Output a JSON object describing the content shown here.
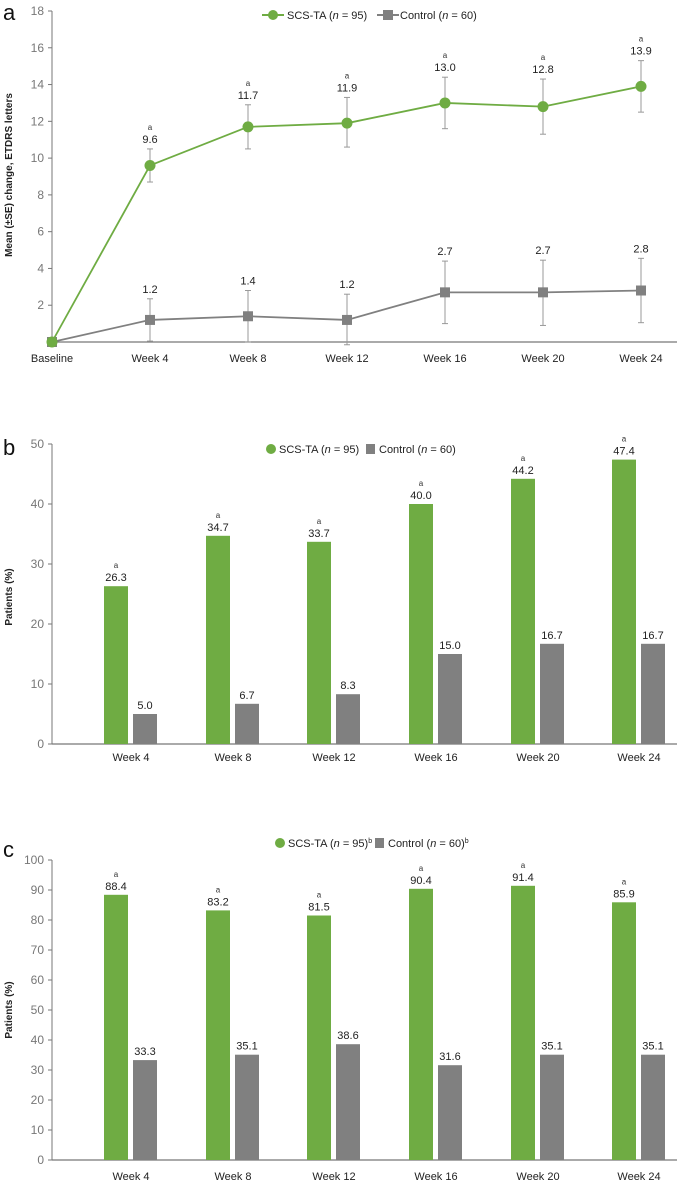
{
  "colors": {
    "scs": "#6fac43",
    "control": "#808080",
    "axis": "#777777"
  },
  "chart_data": [
    {
      "panel": "a",
      "type": "line",
      "ylabel": "Mean (±SE) change, ETDRS letters",
      "ylim": [
        0,
        18
      ],
      "yticks": [
        2,
        4,
        6,
        8,
        10,
        12,
        14,
        16,
        18
      ],
      "categories": [
        "Baseline",
        "Week 4",
        "Week 8",
        "Week 12",
        "Week 16",
        "Week 20",
        "Week 24"
      ],
      "legend_position": "top-center",
      "series": [
        {
          "name": "SCS-TA (n = 95)",
          "name_pre": "SCS-TA (",
          "name_n": "n",
          "name_post": " = 95)",
          "values": [
            0,
            9.6,
            11.7,
            11.9,
            13.0,
            12.8,
            13.9
          ],
          "labels": [
            "",
            "9.6",
            "11.7",
            "11.9",
            "13.0",
            "12.8",
            "13.9"
          ],
          "se_low": [
            null,
            8.7,
            10.5,
            10.6,
            11.6,
            11.3,
            12.5
          ],
          "se_high": [
            null,
            10.5,
            12.9,
            13.3,
            14.4,
            14.3,
            15.3
          ],
          "annotations": [
            "",
            "a",
            "a",
            "a",
            "a",
            "a",
            "a"
          ]
        },
        {
          "name": "Control (n = 60)",
          "name_pre": "Control (",
          "name_n": "n",
          "name_post": " = 60)",
          "values": [
            0,
            1.2,
            1.4,
            1.2,
            2.7,
            2.7,
            2.8
          ],
          "labels": [
            "",
            "1.2",
            "1.4",
            "1.2",
            "2.7",
            "2.7",
            "2.8"
          ],
          "se_low": [
            null,
            0.05,
            0.0,
            -0.15,
            1.0,
            0.9,
            1.05
          ],
          "se_high": [
            null,
            2.35,
            2.8,
            2.6,
            4.4,
            4.45,
            4.55
          ],
          "annotations": [
            "",
            "",
            "",
            "",
            "",
            "",
            ""
          ]
        }
      ]
    },
    {
      "panel": "b",
      "type": "bar",
      "ylabel": "Patients (%)",
      "ylim": [
        0,
        50
      ],
      "yticks": [
        0,
        10,
        20,
        30,
        40,
        50
      ],
      "categories": [
        "Week 4",
        "Week 8",
        "Week 12",
        "Week 16",
        "Week 20",
        "Week 24"
      ],
      "legend_position": "top-center",
      "series": [
        {
          "name": "SCS-TA (n = 95)",
          "name_pre": "SCS-TA (",
          "name_n": "n",
          "name_post": " = 95)",
          "sup": "",
          "values": [
            26.3,
            34.7,
            33.7,
            40.0,
            44.2,
            47.4
          ],
          "labels": [
            "26.3",
            "34.7",
            "33.7",
            "40.0",
            "44.2",
            "47.4"
          ],
          "annotations": [
            "a",
            "a",
            "a",
            "a",
            "a",
            "a"
          ]
        },
        {
          "name": "Control (n = 60)",
          "name_pre": "Control (",
          "name_n": "n",
          "name_post": " = 60)",
          "sup": "",
          "values": [
            5.0,
            6.7,
            8.3,
            15.0,
            16.7,
            16.7
          ],
          "labels": [
            "5.0",
            "6.7",
            "8.3",
            "15.0",
            "16.7",
            "16.7"
          ],
          "annotations": [
            "",
            "",
            "",
            "",
            "",
            ""
          ]
        }
      ]
    },
    {
      "panel": "c",
      "type": "bar",
      "ylabel": "Patients (%)",
      "ylim": [
        0,
        100
      ],
      "yticks": [
        0,
        10,
        20,
        30,
        40,
        50,
        60,
        70,
        80,
        90,
        100
      ],
      "categories": [
        "Week 4",
        "Week 8",
        "Week 12",
        "Week 16",
        "Week 20",
        "Week 24"
      ],
      "legend_position": "top-center",
      "series": [
        {
          "name": "SCS-TA (n = 95)b",
          "name_pre": "SCS-TA (",
          "name_n": "n",
          "name_post": " = 95)",
          "sup": "b",
          "values": [
            88.4,
            83.2,
            81.5,
            90.4,
            91.4,
            85.9
          ],
          "labels": [
            "88.4",
            "83.2",
            "81.5",
            "90.4",
            "91.4",
            "85.9"
          ],
          "annotations": [
            "a",
            "a",
            "a",
            "a",
            "a",
            "a"
          ]
        },
        {
          "name": "Control (n = 60)b",
          "name_pre": "Control (",
          "name_n": "n",
          "name_post": " = 60)",
          "sup": "b",
          "values": [
            33.3,
            35.1,
            38.6,
            31.6,
            35.1,
            35.1
          ],
          "labels": [
            "33.3",
            "35.1",
            "38.6",
            "31.6",
            "35.1",
            "35.1"
          ],
          "annotations": [
            "",
            "",
            "",
            "",
            "",
            ""
          ]
        }
      ]
    }
  ]
}
